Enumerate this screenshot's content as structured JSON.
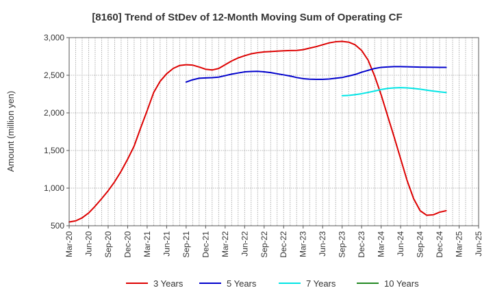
{
  "chart_data": {
    "type": "line",
    "title": "[8160]  Trend of StDev of 12-Month Moving Sum of Operating CF",
    "ylabel": "Amount (million yen)",
    "xlabel": "",
    "ylim": [
      500,
      3000
    ],
    "yticks": [
      500,
      1000,
      1500,
      2000,
      2500,
      3000
    ],
    "ytick_labels": [
      "500",
      "1,000",
      "1,500",
      "2,000",
      "2,500",
      "3,000"
    ],
    "x_range": [
      "2020-03",
      "2025-06"
    ],
    "x_tick_labels": [
      "Mar-20",
      "Jun-20",
      "Sep-20",
      "Dec-20",
      "Mar-21",
      "Jun-21",
      "Sep-21",
      "Dec-21",
      "Mar-22",
      "Jun-22",
      "Sep-22",
      "Dec-22",
      "Mar-23",
      "Jun-23",
      "Sep-23",
      "Dec-23",
      "Mar-24",
      "Jun-24",
      "Sep-24",
      "Dec-24",
      "Mar-25",
      "Jun-25"
    ],
    "grid": true,
    "legend_position": "bottom",
    "series": [
      {
        "name": "3 Years",
        "color": "#dd0000",
        "points": [
          [
            "2020-03",
            550
          ],
          [
            "2020-04",
            565
          ],
          [
            "2020-05",
            605
          ],
          [
            "2020-06",
            670
          ],
          [
            "2020-07",
            760
          ],
          [
            "2020-08",
            860
          ],
          [
            "2020-09",
            965
          ],
          [
            "2020-10",
            1085
          ],
          [
            "2020-11",
            1225
          ],
          [
            "2020-12",
            1385
          ],
          [
            "2021-01",
            1560
          ],
          [
            "2021-02",
            1800
          ],
          [
            "2021-03",
            2030
          ],
          [
            "2021-04",
            2270
          ],
          [
            "2021-05",
            2420
          ],
          [
            "2021-06",
            2520
          ],
          [
            "2021-07",
            2590
          ],
          [
            "2021-08",
            2630
          ],
          [
            "2021-09",
            2640
          ],
          [
            "2021-10",
            2635
          ],
          [
            "2021-11",
            2610
          ],
          [
            "2021-12",
            2580
          ],
          [
            "2022-01",
            2570
          ],
          [
            "2022-02",
            2590
          ],
          [
            "2022-03",
            2640
          ],
          [
            "2022-04",
            2690
          ],
          [
            "2022-05",
            2730
          ],
          [
            "2022-06",
            2760
          ],
          [
            "2022-07",
            2785
          ],
          [
            "2022-08",
            2800
          ],
          [
            "2022-09",
            2810
          ],
          [
            "2022-10",
            2815
          ],
          [
            "2022-11",
            2820
          ],
          [
            "2022-12",
            2825
          ],
          [
            "2023-01",
            2828
          ],
          [
            "2023-02",
            2830
          ],
          [
            "2023-03",
            2840
          ],
          [
            "2023-04",
            2860
          ],
          [
            "2023-05",
            2880
          ],
          [
            "2023-06",
            2905
          ],
          [
            "2023-07",
            2930
          ],
          [
            "2023-08",
            2945
          ],
          [
            "2023-09",
            2950
          ],
          [
            "2023-10",
            2940
          ],
          [
            "2023-11",
            2905
          ],
          [
            "2023-12",
            2830
          ],
          [
            "2024-01",
            2700
          ],
          [
            "2024-02",
            2490
          ],
          [
            "2024-03",
            2240
          ],
          [
            "2024-04",
            1960
          ],
          [
            "2024-05",
            1680
          ],
          [
            "2024-06",
            1390
          ],
          [
            "2024-07",
            1100
          ],
          [
            "2024-08",
            860
          ],
          [
            "2024-09",
            700
          ],
          [
            "2024-10",
            640
          ],
          [
            "2024-11",
            645
          ],
          [
            "2024-12",
            680
          ],
          [
            "2025-01",
            700
          ]
        ]
      },
      {
        "name": "5 Years",
        "color": "#0000cc",
        "points": [
          [
            "2021-09",
            2410
          ],
          [
            "2021-10",
            2440
          ],
          [
            "2021-11",
            2460
          ],
          [
            "2021-12",
            2465
          ],
          [
            "2022-01",
            2468
          ],
          [
            "2022-02",
            2475
          ],
          [
            "2022-03",
            2495
          ],
          [
            "2022-04",
            2515
          ],
          [
            "2022-05",
            2530
          ],
          [
            "2022-06",
            2545
          ],
          [
            "2022-07",
            2550
          ],
          [
            "2022-08",
            2552
          ],
          [
            "2022-09",
            2545
          ],
          [
            "2022-10",
            2535
          ],
          [
            "2022-11",
            2520
          ],
          [
            "2022-12",
            2505
          ],
          [
            "2023-01",
            2490
          ],
          [
            "2023-02",
            2470
          ],
          [
            "2023-03",
            2455
          ],
          [
            "2023-04",
            2448
          ],
          [
            "2023-05",
            2445
          ],
          [
            "2023-06",
            2445
          ],
          [
            "2023-07",
            2450
          ],
          [
            "2023-08",
            2460
          ],
          [
            "2023-09",
            2470
          ],
          [
            "2023-10",
            2490
          ],
          [
            "2023-11",
            2510
          ],
          [
            "2023-12",
            2540
          ],
          [
            "2024-01",
            2565
          ],
          [
            "2024-02",
            2590
          ],
          [
            "2024-03",
            2605
          ],
          [
            "2024-04",
            2610
          ],
          [
            "2024-05",
            2615
          ],
          [
            "2024-06",
            2615
          ],
          [
            "2024-07",
            2612
          ],
          [
            "2024-08",
            2610
          ],
          [
            "2024-09",
            2608
          ],
          [
            "2024-10",
            2607
          ],
          [
            "2024-11",
            2606
          ],
          [
            "2024-12",
            2605
          ],
          [
            "2025-01",
            2604
          ]
        ]
      },
      {
        "name": "7 Years",
        "color": "#00e5e5",
        "points": [
          [
            "2023-09",
            2228
          ],
          [
            "2023-10",
            2232
          ],
          [
            "2023-11",
            2242
          ],
          [
            "2023-12",
            2255
          ],
          [
            "2024-01",
            2272
          ],
          [
            "2024-02",
            2290
          ],
          [
            "2024-03",
            2310
          ],
          [
            "2024-04",
            2325
          ],
          [
            "2024-05",
            2332
          ],
          [
            "2024-06",
            2335
          ],
          [
            "2024-07",
            2332
          ],
          [
            "2024-08",
            2325
          ],
          [
            "2024-09",
            2315
          ],
          [
            "2024-10",
            2302
          ],
          [
            "2024-11",
            2290
          ],
          [
            "2024-12",
            2280
          ],
          [
            "2025-01",
            2270
          ]
        ]
      },
      {
        "name": "10 Years",
        "color": "#228822",
        "points": []
      }
    ]
  }
}
